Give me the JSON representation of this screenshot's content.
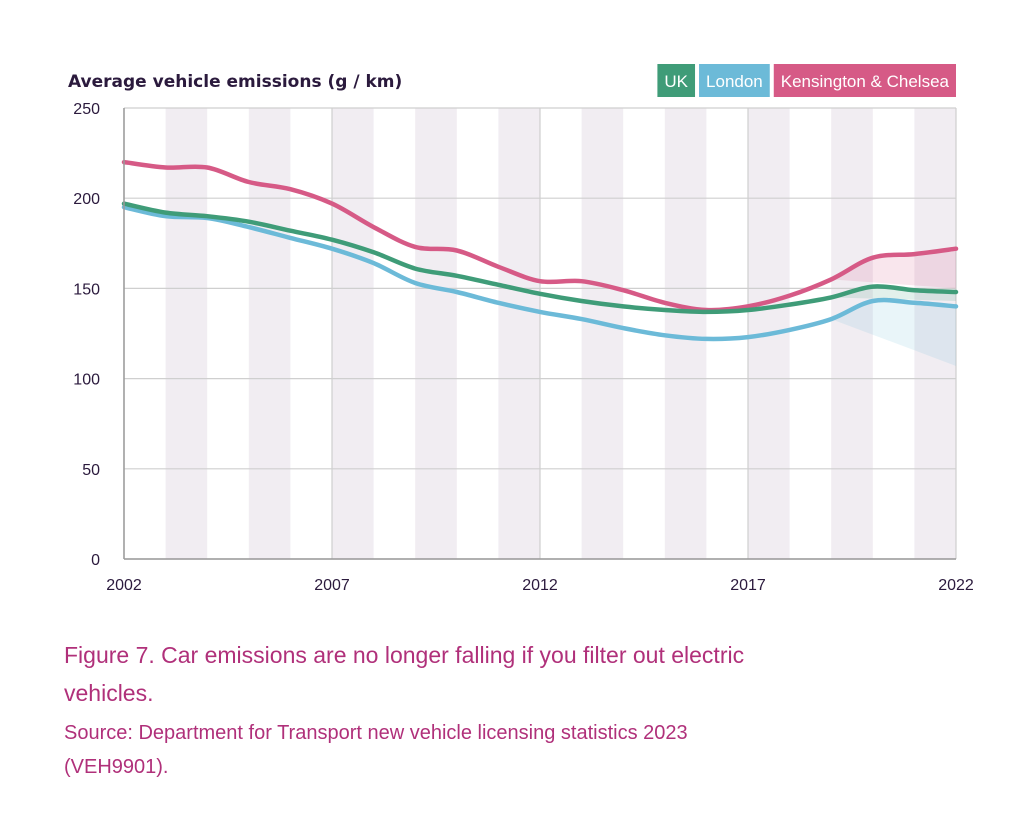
{
  "chart_data": {
    "type": "line",
    "ylabel": "Average vehicle emissions (g / km)",
    "xlabel": "",
    "title": "",
    "ylim": [
      0,
      250
    ],
    "xlim": [
      2002,
      2022
    ],
    "yticks": [
      "0",
      "50",
      "100",
      "150",
      "200",
      "250"
    ],
    "xticks": [
      "2002",
      "2007",
      "2012",
      "2017",
      "2022"
    ],
    "grid": true,
    "legend_position": "top-right",
    "x": [
      2002,
      2003,
      2004,
      2005,
      2006,
      2007,
      2008,
      2009,
      2010,
      2011,
      2012,
      2013,
      2014,
      2015,
      2016,
      2017,
      2018,
      2019,
      2020,
      2021,
      2022
    ],
    "series": [
      {
        "name": "UK",
        "color": "#3f9c78",
        "values": [
          197,
          192,
          190,
          187,
          182,
          177,
          170,
          161,
          157,
          152,
          147,
          143,
          140,
          138,
          137,
          138,
          141,
          145,
          151,
          149,
          148
        ],
        "filtered_band_end": 143
      },
      {
        "name": "London",
        "color": "#6cbad8",
        "values": [
          195,
          190,
          189,
          184,
          178,
          172,
          164,
          153,
          148,
          142,
          137,
          133,
          128,
          124,
          122,
          123,
          127,
          133,
          143,
          142,
          140
        ],
        "filtered_band_end": 107
      },
      {
        "name": "Kensington & Chelsea",
        "color": "#d65a86",
        "values": [
          220,
          217,
          217,
          209,
          205,
          197,
          184,
          173,
          171,
          162,
          154,
          154,
          149,
          142,
          138,
          140,
          146,
          155,
          167,
          169,
          172
        ],
        "filtered_band_end": 150
      }
    ]
  },
  "caption": {
    "title": "Figure 7. Car emissions are no longer falling if you filter out electric vehicles.",
    "source": "Source: Department for Transport new vehicle licensing statistics 2023 (VEH9901)."
  }
}
